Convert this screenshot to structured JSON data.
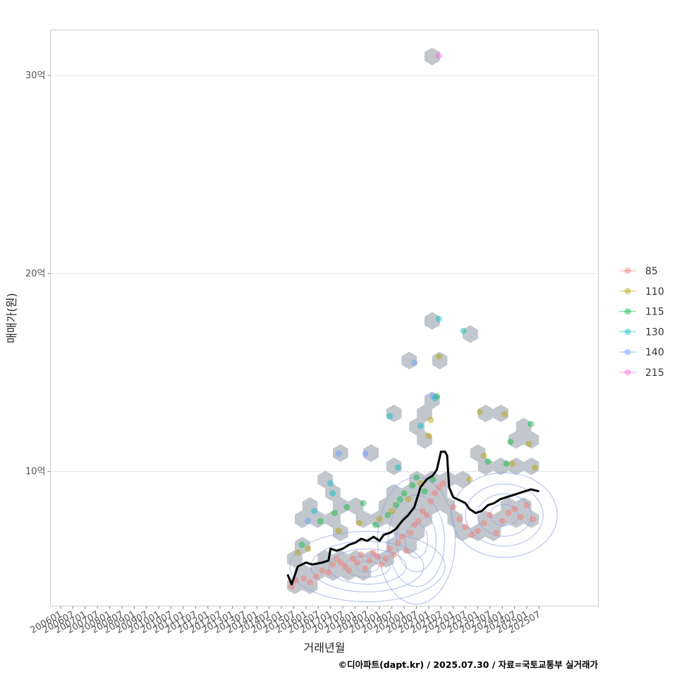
{
  "chart_data": {
    "type": "scatter",
    "xlabel": "거래년월",
    "ylabel": "매매가(원)",
    "caption": "©디아파트(dapt.kr) / 2025.07.30 / 자료=국토교통부 실거래가",
    "x_ticks": [
      "200601",
      "200607",
      "200701",
      "200707",
      "200801",
      "200807",
      "200901",
      "200907",
      "201001",
      "201007",
      "201101",
      "201107",
      "201201",
      "201207",
      "201301",
      "201307",
      "201401",
      "201407",
      "201501",
      "201507",
      "201601",
      "201607",
      "201701",
      "201707",
      "201801",
      "201807",
      "201901",
      "201907",
      "202001",
      "202007",
      "202101",
      "202107",
      "202201",
      "202207",
      "202301",
      "202307",
      "202401",
      "202407",
      "202501",
      "202507"
    ],
    "xlim": [
      "2005-08",
      "2027-12"
    ],
    "y_ticks": [
      {
        "value": 10,
        "label": "10억"
      },
      {
        "value": 20,
        "label": "20억"
      },
      {
        "value": 30,
        "label": "30억"
      }
    ],
    "ylim": [
      3.2,
      32.3
    ],
    "grid": true,
    "legend_position": "right",
    "legend": [
      {
        "name": "85",
        "color": "#F8766D"
      },
      {
        "name": "110",
        "color": "#B79F00"
      },
      {
        "name": "115",
        "color": "#00BA38"
      },
      {
        "name": "130",
        "color": "#00BFC4"
      },
      {
        "name": "140",
        "color": "#619CFF"
      },
      {
        "name": "215",
        "color": "#F564E3"
      }
    ],
    "hexbin_color": "#9aa2ab",
    "contour_color": "#8ea0dd",
    "median_line_color": "#000000",
    "median_line": [
      [
        "2015-04",
        4.8
      ],
      [
        "2015-06",
        4.3
      ],
      [
        "2015-09",
        5.2
      ],
      [
        "2016-01",
        5.4
      ],
      [
        "2016-04",
        5.3
      ],
      [
        "2016-09",
        5.4
      ],
      [
        "2016-12",
        5.5
      ],
      [
        "2017-01",
        6.1
      ],
      [
        "2017-04",
        6.0
      ],
      [
        "2017-07",
        6.1
      ],
      [
        "2017-10",
        6.3
      ],
      [
        "2018-01",
        6.4
      ],
      [
        "2018-04",
        6.6
      ],
      [
        "2018-07",
        6.5
      ],
      [
        "2018-10",
        6.7
      ],
      [
        "2019-01",
        6.5
      ],
      [
        "2019-03",
        6.8
      ],
      [
        "2019-06",
        6.9
      ],
      [
        "2019-09",
        7.1
      ],
      [
        "2019-12",
        7.5
      ],
      [
        "2020-03",
        7.8
      ],
      [
        "2020-06",
        8.2
      ],
      [
        "2020-09",
        9.2
      ],
      [
        "2020-12",
        9.6
      ],
      [
        "2021-03",
        9.8
      ],
      [
        "2021-05",
        10.1
      ],
      [
        "2021-07",
        11.0
      ],
      [
        "2021-09",
        11.0
      ],
      [
        "2021-10",
        10.8
      ],
      [
        "2021-11",
        9.2
      ],
      [
        "2022-01",
        8.7
      ],
      [
        "2022-03",
        8.6
      ],
      [
        "2022-05",
        8.5
      ],
      [
        "2022-07",
        8.4
      ],
      [
        "2022-09",
        8.1
      ],
      [
        "2022-12",
        7.9
      ],
      [
        "2023-03",
        8.0
      ],
      [
        "2023-06",
        8.3
      ],
      [
        "2023-09",
        8.4
      ],
      [
        "2023-12",
        8.6
      ],
      [
        "2024-03",
        8.7
      ],
      [
        "2024-06",
        8.8
      ],
      [
        "2024-09",
        8.9
      ],
      [
        "2024-12",
        9.0
      ],
      [
        "2025-03",
        9.1
      ],
      [
        "2025-07",
        9.0
      ]
    ],
    "series": [
      {
        "name": "85",
        "points": [
          [
            "2015-06",
            4.2
          ],
          [
            "2015-08",
            4.5
          ],
          [
            "2015-12",
            4.6
          ],
          [
            "2016-03",
            4.4
          ],
          [
            "2016-06",
            4.7
          ],
          [
            "2016-09",
            5.0
          ],
          [
            "2016-12",
            4.9
          ],
          [
            "2017-02",
            5.3
          ],
          [
            "2017-04",
            5.6
          ],
          [
            "2017-06",
            5.4
          ],
          [
            "2017-08",
            5.2
          ],
          [
            "2017-10",
            5.0
          ],
          [
            "2017-12",
            5.6
          ],
          [
            "2018-02",
            5.4
          ],
          [
            "2018-04",
            5.8
          ],
          [
            "2018-06",
            5.1
          ],
          [
            "2018-08",
            5.5
          ],
          [
            "2018-10",
            5.9
          ],
          [
            "2018-12",
            5.7
          ],
          [
            "2019-02",
            5.3
          ],
          [
            "2019-04",
            5.6
          ],
          [
            "2019-06",
            6.1
          ],
          [
            "2019-08",
            5.8
          ],
          [
            "2019-10",
            6.4
          ],
          [
            "2019-12",
            6.7
          ],
          [
            "2020-02",
            6.0
          ],
          [
            "2020-04",
            6.9
          ],
          [
            "2020-06",
            7.3
          ],
          [
            "2020-08",
            7.5
          ],
          [
            "2020-10",
            8.0
          ],
          [
            "2020-12",
            7.8
          ],
          [
            "2021-02",
            8.5
          ],
          [
            "2021-04",
            8.9
          ],
          [
            "2021-06",
            9.2
          ],
          [
            "2021-08",
            9.4
          ],
          [
            "2022-01",
            8.2
          ],
          [
            "2022-04",
            7.6
          ],
          [
            "2022-07",
            7.2
          ],
          [
            "2022-10",
            6.8
          ],
          [
            "2023-01",
            7.0
          ],
          [
            "2023-04",
            7.4
          ],
          [
            "2023-07",
            7.8
          ],
          [
            "2023-10",
            6.9
          ],
          [
            "2024-01",
            7.5
          ],
          [
            "2024-04",
            7.9
          ],
          [
            "2024-07",
            8.1
          ],
          [
            "2024-10",
            7.7
          ],
          [
            "2025-01",
            8.3
          ],
          [
            "2025-04",
            7.6
          ]
        ]
      },
      {
        "name": "110",
        "points": [
          [
            "2015-09",
            5.9
          ],
          [
            "2016-02",
            6.1
          ],
          [
            "2017-05",
            7.0
          ],
          [
            "2018-03",
            7.4
          ],
          [
            "2019-01",
            7.6
          ],
          [
            "2019-07",
            8.0
          ],
          [
            "2020-03",
            8.6
          ],
          [
            "2020-09",
            9.4
          ],
          [
            "2021-01",
            11.8
          ],
          [
            "2021-02",
            12.6
          ],
          [
            "2021-06",
            15.8
          ],
          [
            "2022-09",
            9.6
          ],
          [
            "2023-02",
            13.0
          ],
          [
            "2023-04",
            10.8
          ],
          [
            "2024-02",
            12.9
          ],
          [
            "2024-06",
            10.4
          ],
          [
            "2025-02",
            11.4
          ],
          [
            "2025-05",
            10.2
          ]
        ]
      },
      {
        "name": "115",
        "points": [
          [
            "2015-11",
            6.3
          ],
          [
            "2016-08",
            7.5
          ],
          [
            "2017-03",
            7.9
          ],
          [
            "2017-09",
            8.2
          ],
          [
            "2018-05",
            8.4
          ],
          [
            "2018-11",
            7.3
          ],
          [
            "2019-05",
            7.8
          ],
          [
            "2019-09",
            8.3
          ],
          [
            "2019-11",
            8.6
          ],
          [
            "2020-01",
            8.9
          ],
          [
            "2020-05",
            9.3
          ],
          [
            "2020-07",
            9.7
          ],
          [
            "2020-11",
            9.0
          ],
          [
            "2021-03",
            9.6
          ],
          [
            "2021-05",
            13.8
          ],
          [
            "2023-06",
            10.5
          ],
          [
            "2024-03",
            10.4
          ],
          [
            "2024-05",
            11.5
          ],
          [
            "2025-03",
            12.4
          ]
        ]
      },
      {
        "name": "130",
        "points": [
          [
            "2016-05",
            8.0
          ],
          [
            "2017-01",
            9.4
          ],
          [
            "2017-02",
            8.9
          ],
          [
            "2019-06",
            12.8
          ],
          [
            "2019-10",
            10.2
          ],
          [
            "2020-09",
            12.3
          ],
          [
            "2021-06",
            17.7
          ],
          [
            "2022-06",
            17.1
          ],
          [
            "2021-04",
            13.7
          ]
        ]
      },
      {
        "name": "140",
        "points": [
          [
            "2016-02",
            7.5
          ],
          [
            "2017-05",
            10.9
          ],
          [
            "2018-06",
            10.9
          ],
          [
            "2020-06",
            15.5
          ],
          [
            "2021-03",
            13.8
          ]
        ]
      },
      {
        "name": "215",
        "points": [
          [
            "2021-06",
            31.0
          ]
        ]
      }
    ]
  }
}
